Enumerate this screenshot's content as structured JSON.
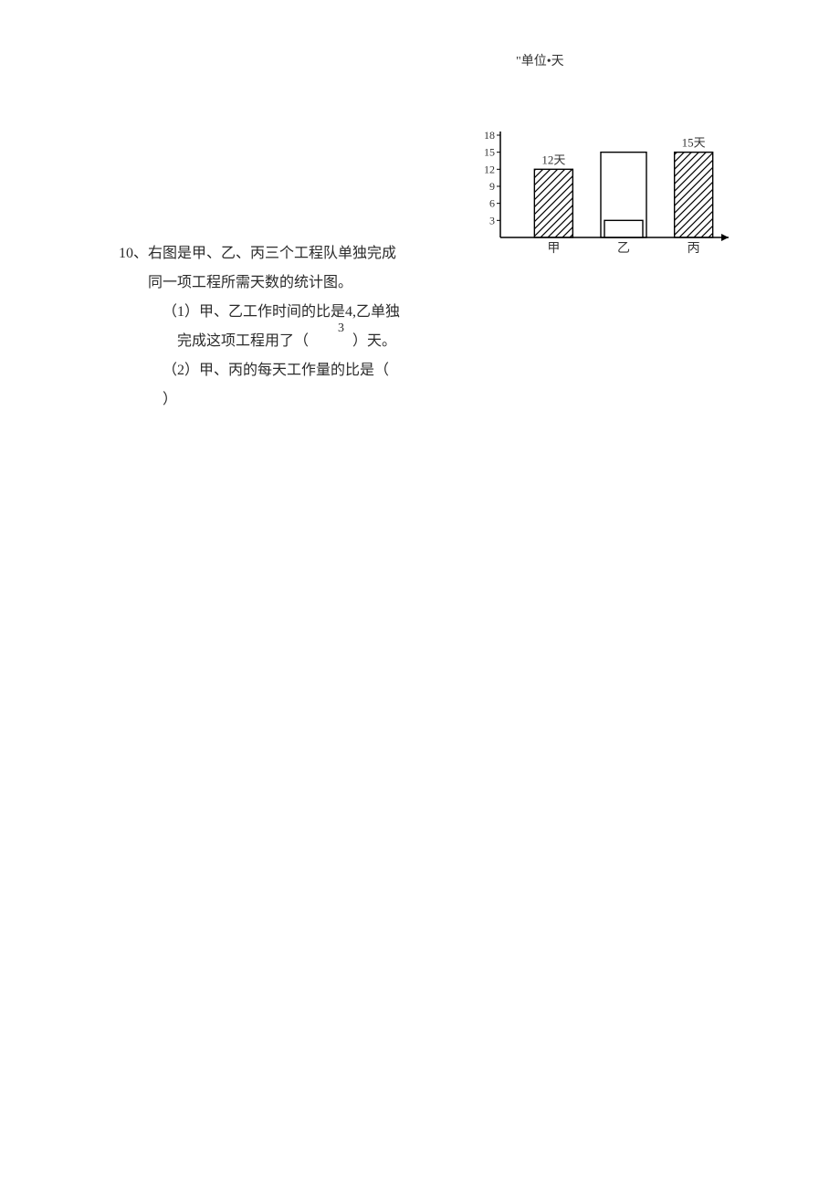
{
  "unit_label": "\"单位•天",
  "question": {
    "number": "10、",
    "line1": "右图是甲、乙、丙三个工程队单独完成",
    "line2": "同一项工程所需天数的统计图。",
    "sub1_prefix": "（1）甲、乙工作时间的比是4,乙单独",
    "sub1_small": "3",
    "sub1_line2a": "完成这项工程用了（",
    "sub1_line2b": "）天。",
    "sub2a": "（2）甲、丙的每天工作量的比是（",
    "sub2b": "）"
  },
  "chart": {
    "y_ticks": [
      18,
      15,
      12,
      9,
      6,
      3
    ],
    "tick_fontsize": 12,
    "tick_color": "#333333",
    "axis_color": "#000000",
    "bar_border": "#000000",
    "hatch_color": "#000000",
    "categories": [
      "甲",
      "乙",
      "丙"
    ],
    "bars": [
      {
        "value": 12,
        "label": "12天",
        "hatched": true
      },
      {
        "value": 3,
        "label": "",
        "hatched": false
      },
      {
        "value": 15,
        "label": "15天",
        "hatched": true
      }
    ],
    "y_max": 18,
    "unknown_outline_top": 15
  },
  "colors": {
    "background": "#ffffff",
    "text": "#2b2b2b"
  }
}
